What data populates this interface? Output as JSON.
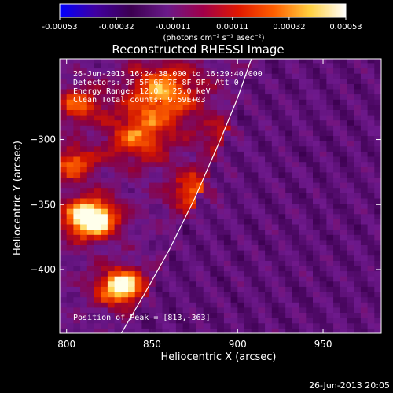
{
  "chart_data": {
    "type": "heatmap",
    "title": "Reconstructed RHESSI Image",
    "xlabel": "Heliocentric X (arcsec)",
    "ylabel": "Heliocentric Y (arcsec)",
    "xlim": [
      796,
      984
    ],
    "ylim": [
      -449,
      -238
    ],
    "x_ticks": [
      800,
      850,
      900,
      950
    ],
    "y_ticks": [
      -300,
      -350,
      -400
    ],
    "colorbar": {
      "range": [
        -0.00053,
        0.00053
      ],
      "ticks": [
        -0.00053,
        -0.00032,
        -0.00011,
        0.00011,
        0.00032,
        0.00053
      ],
      "tick_labels": [
        "-0.00053",
        "-0.00032",
        "-0.00011",
        "0.00011",
        "0.00032",
        "0.00053"
      ],
      "unit_label": "(photons cm⁻² s⁻¹ asec⁻²)",
      "colors": [
        "#0000ff",
        "#4000a0",
        "#3c0050",
        "#6a1a8a",
        "#a0004a",
        "#e01800",
        "#ff6000",
        "#ffd040",
        "#ffffff"
      ]
    },
    "annotations": [
      "26-Jun-2013 16:24:38.000 to 16:29:40.000",
      "Detectors: 3F 5F 6F 7F 8F 9F, Att 0",
      "Energy Range: 12.0 - 25.0 keV",
      "Clean      Total counts: 9.59E+03"
    ],
    "peak_label": "Position of Peak = [813,-363]",
    "peak": [
      813,
      -363
    ],
    "limb_curve": {
      "x": [
        832,
        845,
        860,
        875,
        890,
        900,
        908
      ],
      "y": [
        -449,
        -420,
        -385,
        -345,
        -300,
        -268,
        -238
      ]
    },
    "sources": [
      {
        "x": 812,
        "y": -362,
        "sigma": 11,
        "amp": 1.0
      },
      {
        "x": 830,
        "y": -415,
        "sigma": 10,
        "amp": 0.85
      },
      {
        "x": 802,
        "y": -320,
        "sigma": 9,
        "amp": 0.55
      },
      {
        "x": 855,
        "y": -265,
        "sigma": 16,
        "amp": 0.6
      },
      {
        "x": 875,
        "y": -342,
        "sigma": 12,
        "amp": 0.55
      },
      {
        "x": 840,
        "y": -300,
        "sigma": 14,
        "amp": 0.5
      },
      {
        "x": 805,
        "y": -275,
        "sigma": 10,
        "amp": 0.45
      },
      {
        "x": 890,
        "y": -300,
        "sigma": 10,
        "amp": 0.35
      }
    ]
  },
  "footer": {
    "timestamp": "26-Jun-2013 20:05"
  },
  "colors": {
    "background": "#000000",
    "text": "#ffffff",
    "limb": "#ffffff",
    "axes": "#ffffff"
  }
}
